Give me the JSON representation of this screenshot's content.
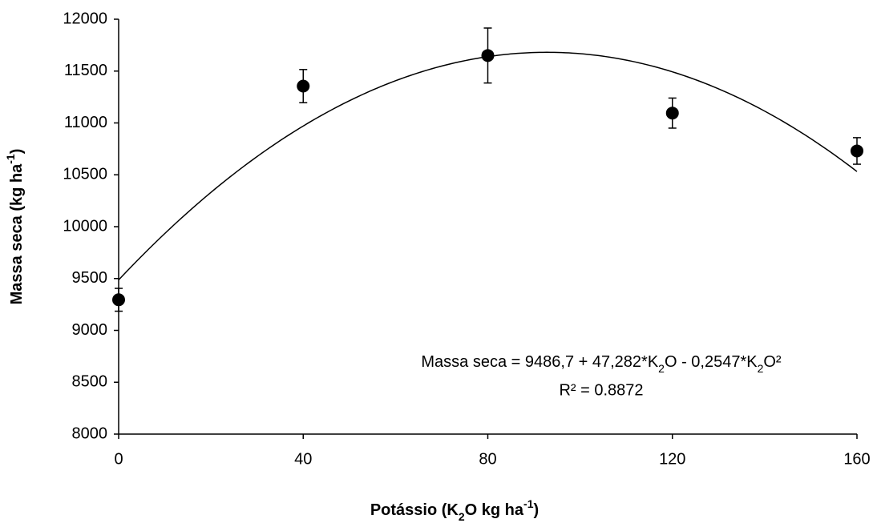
{
  "chart_data": {
    "type": "scatter",
    "x": [
      0,
      40,
      80,
      120,
      160
    ],
    "series": [
      {
        "color": "#000000",
        "values": [
          9295,
          11355,
          11650,
          11095,
          10730
        ],
        "errors": [
          110,
          160,
          265,
          145,
          128
        ]
      }
    ],
    "xlim": [
      0,
      160
    ],
    "xticks": [
      0,
      40,
      80,
      120,
      160
    ],
    "ylim": [
      8000,
      12000
    ],
    "yticks": [
      8000,
      8500,
      9000,
      9500,
      10000,
      10500,
      11000,
      11500,
      12000
    ],
    "xlabel": [
      {
        "text": "Potássio (K"
      },
      {
        "sub": "2"
      },
      {
        "text": "O kg ha"
      },
      {
        "sup": "-1"
      },
      {
        "text": ")"
      }
    ],
    "ylabel": [
      {
        "text": "Massa seca (kg ha"
      },
      {
        "sup": "-1"
      },
      {
        "text": ")"
      }
    ],
    "trendline": {
      "coefficients": [
        9486.7,
        47.282,
        -0.2547
      ],
      "color": "#000000"
    },
    "equation": [
      {
        "text": "Massa seca = 9486,7 + 47,282*K"
      },
      {
        "sub": "2"
      },
      {
        "text": "O - 0,2547*K"
      },
      {
        "sub": "2"
      },
      {
        "text": "O²"
      }
    ],
    "r2": "R² = 0.8872",
    "grid": false
  }
}
